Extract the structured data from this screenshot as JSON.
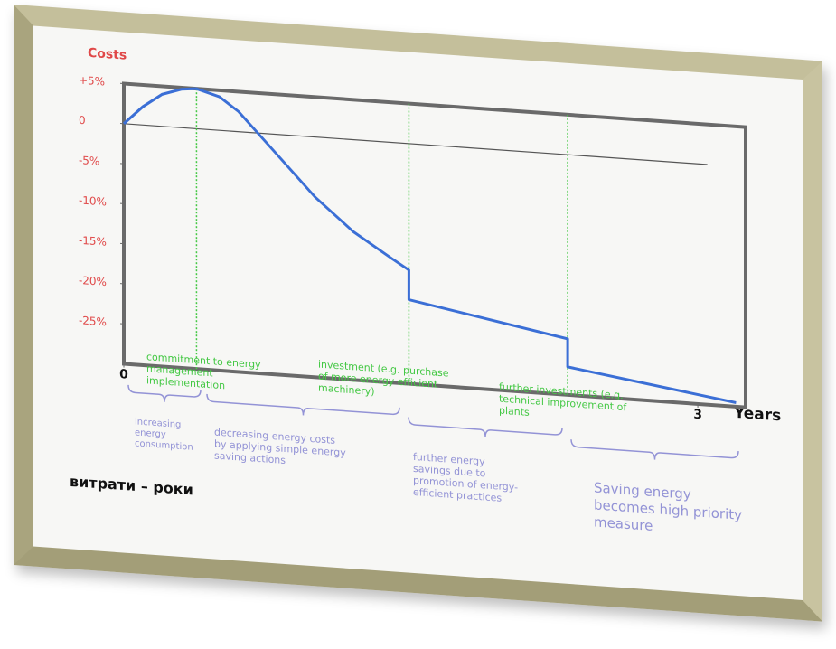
{
  "chart_data": {
    "type": "line",
    "y_label": "Costs",
    "x_label": "Years",
    "caption": "витрати – роки",
    "x": [
      0,
      0.1,
      0.2,
      0.3,
      0.38,
      0.5,
      0.6,
      0.8,
      1.0,
      1.2,
      1.4,
      1.49,
      1.49,
      2.32,
      2.32,
      3.2
    ],
    "values": [
      0,
      2.3,
      4,
      4.8,
      5,
      4.2,
      2.5,
      -2.5,
      -7.5,
      -11.5,
      -14.5,
      -15.8,
      -19.5,
      -23,
      -26.5,
      -29.5
    ],
    "color": "#3b6fd6",
    "reference_line": {
      "y": 0,
      "x_end": 3.05,
      "color": "#555555"
    },
    "xlim": [
      0,
      3.25
    ],
    "ylim": [
      -30,
      5
    ],
    "xticks": [
      0,
      3
    ],
    "yticks": [
      {
        "value": 5,
        "label": "+5%"
      },
      0,
      {
        "value": -5,
        "label": "-5%"
      },
      {
        "value": -10,
        "label": "-10%"
      },
      {
        "value": -15,
        "label": "-15%"
      },
      {
        "value": -20,
        "label": "-20%"
      },
      {
        "value": -25,
        "label": "-25%"
      }
    ],
    "tick_label_color": "#e04848",
    "event_color": "#44c844",
    "phase_color": "#9393d6",
    "event_labels": [
      {
        "x": 0.38,
        "lines": [
          "commitment to energy",
          "management",
          "implementation"
        ]
      },
      {
        "x": 1.49,
        "lines": [
          "investment (e.g. purchase",
          "of more energy efficient",
          "machinery)"
        ]
      },
      {
        "x": 2.32,
        "lines": [
          "further investments (e.g.",
          "technical improvement of",
          "plants"
        ]
      }
    ],
    "phase_labels": [
      {
        "lines": [
          "increasing",
          "energy",
          "consumption"
        ]
      },
      {
        "lines": [
          "decreasing energy costs",
          "by applying simple energy",
          "saving actions"
        ]
      },
      {
        "lines": [
          "further energy",
          "savings due to",
          "promotion of energy-",
          "efficient practices"
        ]
      },
      {
        "lines": [
          "Saving energy",
          "becomes high priority",
          "measure"
        ]
      }
    ]
  }
}
